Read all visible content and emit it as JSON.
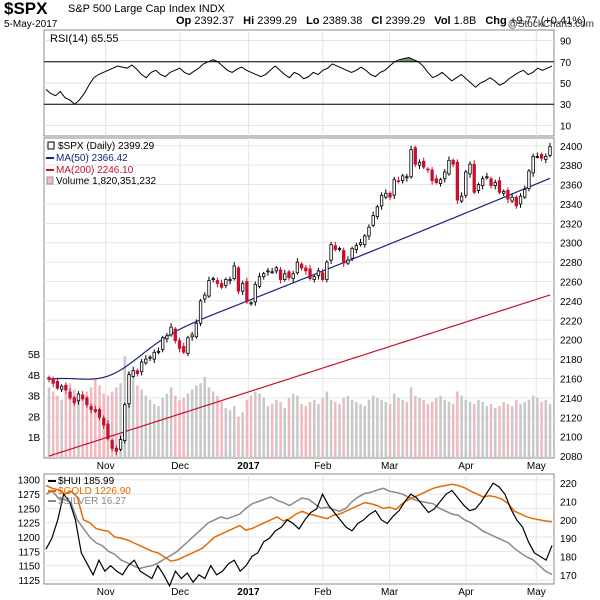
{
  "header": {
    "symbol": "$SPX",
    "name": "S&P 500 Large Cap Index",
    "exchange": "INDX",
    "date": "5-May-2017",
    "brand": "@StockCharts.com",
    "open_label": "Op",
    "open": "2392.37",
    "high_label": "Hi",
    "high": "2399.29",
    "low_label": "Lo",
    "low": "2389.38",
    "close_label": "Cl",
    "close": "2399.29",
    "vol_label": "Vol",
    "vol": "1.8B",
    "chg_label": "Chg",
    "chg": "+9.77 (+0.41%)"
  },
  "colors": {
    "up": "#000000",
    "down": "#c8102e",
    "ma50": "#1a237e",
    "ma200": "#c8102e",
    "rsi_line": "#000000",
    "rsi_fill": "#2e7d32",
    "vol_bar": "#f2b8c0",
    "vol_bar_up": "#c8c8c8",
    "hui": "#000000",
    "gold": "#e66a00",
    "silver": "#8a8a8a"
  },
  "chart_data": [
    {
      "type": "line",
      "panel": "rsi",
      "legend": "RSI(14) 65.55",
      "series": [
        {
          "name": "RSI(14)",
          "values": [
            44,
            40,
            38,
            42,
            36,
            34,
            30,
            34,
            40,
            48,
            55,
            58,
            60,
            62,
            64,
            66,
            65,
            64,
            67,
            63,
            58,
            55,
            60,
            62,
            58,
            56,
            60,
            62,
            64,
            60,
            58,
            61,
            64,
            68,
            70,
            72,
            70,
            66,
            62,
            60,
            63,
            65,
            62,
            60,
            58,
            56,
            58,
            62,
            66,
            62,
            58,
            55,
            60,
            58,
            54,
            56,
            60,
            58,
            62,
            64,
            68,
            66,
            64,
            62,
            60,
            62,
            65,
            62,
            58,
            56,
            60,
            62,
            66,
            70,
            72,
            73,
            74,
            72,
            70,
            66,
            60,
            55,
            57,
            60,
            56,
            52,
            55,
            58,
            54,
            50,
            46,
            50,
            52,
            55,
            52,
            48,
            50,
            54,
            57,
            60,
            62,
            58,
            60,
            64,
            62,
            64,
            66
          ]
        }
      ],
      "y_ticks": [
        10,
        30,
        50,
        70,
        90
      ],
      "ylim": [
        0,
        100
      ],
      "ref_lines": [
        30,
        70
      ]
    },
    {
      "type": "candlestick",
      "panel": "price",
      "title": "$SPX (Daily) 2399.29",
      "legend": [
        "$SPX (Daily) 2399.29",
        "MA(50) 2366.42",
        "MA(200) 2246.10",
        "Volume 1,820,351,232"
      ],
      "closes": [
        2159,
        2155,
        2150,
        2152,
        2148,
        2140,
        2135,
        2144,
        2139,
        2133,
        2128,
        2126,
        2120,
        2112,
        2098,
        2088,
        2085,
        2097,
        2133,
        2164,
        2168,
        2165,
        2177,
        2180,
        2182,
        2187,
        2188,
        2202,
        2204,
        2213,
        2199,
        2191,
        2187,
        2202,
        2205,
        2217,
        2240,
        2246,
        2261,
        2263,
        2258,
        2254,
        2262,
        2262,
        2276,
        2250,
        2258,
        2239,
        2238,
        2257,
        2265,
        2268,
        2271,
        2270,
        2274,
        2262,
        2268,
        2264,
        2268,
        2280,
        2274,
        2271,
        2263,
        2265,
        2271,
        2262,
        2280,
        2298,
        2293,
        2294,
        2279,
        2282,
        2294,
        2297,
        2300,
        2307,
        2316,
        2328,
        2337,
        2349,
        2351,
        2347,
        2365,
        2363,
        2369,
        2368,
        2396,
        2381,
        2383,
        2378,
        2375,
        2364,
        2362,
        2365,
        2373,
        2385,
        2381,
        2344,
        2348,
        2373,
        2381,
        2352,
        2360,
        2366,
        2368,
        2359,
        2362,
        2352,
        2353,
        2345,
        2347,
        2338,
        2348,
        2355,
        2374,
        2389,
        2389,
        2387,
        2389,
        2399
      ],
      "volume_B": [
        3.4,
        3.2,
        3.0,
        2.8,
        3.1,
        3.6,
        3.3,
        3.0,
        2.9,
        3.2,
        3.4,
        3.8,
        3.5,
        3.1,
        3.0,
        3.2,
        3.4,
        3.6,
        4.9,
        4.2,
        3.8,
        3.5,
        3.3,
        3.0,
        2.8,
        2.6,
        2.5,
        2.9,
        3.1,
        3.4,
        3.0,
        2.8,
        2.9,
        3.1,
        3.3,
        3.5,
        3.6,
        3.9,
        3.4,
        3.2,
        3.0,
        2.7,
        2.4,
        2.3,
        2.5,
        2.0,
        2.2,
        2.8,
        3.0,
        3.2,
        3.1,
        2.9,
        2.5,
        2.6,
        2.8,
        2.7,
        2.4,
        2.9,
        3.1,
        3.0,
        2.6,
        2.5,
        2.7,
        2.8,
        2.6,
        2.9,
        3.2,
        2.8,
        2.7,
        2.6,
        2.9,
        3.0,
        2.8,
        2.7,
        2.6,
        2.5,
        2.8,
        3.0,
        2.9,
        2.8,
        2.7,
        2.6,
        3.1,
        2.9,
        2.8,
        2.7,
        3.4,
        3.0,
        2.9,
        2.8,
        2.6,
        2.7,
        2.9,
        3.0,
        2.8,
        2.7,
        2.6,
        3.2,
        3.0,
        2.8,
        2.7,
        2.6,
        2.8,
        2.7,
        2.5,
        2.6,
        2.4,
        2.5,
        2.7,
        2.6,
        2.5,
        2.8,
        2.6,
        2.7,
        2.8,
        3.0,
        2.9,
        2.7,
        2.8,
        2.6
      ],
      "ma50_start_end": [
        2163,
        2366.42
      ],
      "ma200_start_end": [
        2080,
        2246.1
      ],
      "y_ticks": [
        2080,
        2100,
        2120,
        2140,
        2160,
        2180,
        2200,
        2220,
        2240,
        2260,
        2280,
        2300,
        2320,
        2340,
        2360,
        2380,
        2400
      ],
      "volume_ticks": [
        "1B",
        "2B",
        "3B",
        "4B",
        "5B"
      ],
      "ylim": [
        2078,
        2408
      ],
      "x_ticks": [
        "Nov",
        "Dec",
        "2017",
        "Feb",
        "Mar",
        "Apr",
        "May"
      ]
    },
    {
      "type": "line",
      "panel": "comparison",
      "series": [
        {
          "name": "$HUI 185.99",
          "values": [
            184,
            190,
            200,
            214,
            210,
            200,
            182,
            176,
            170,
            178,
            172,
            175,
            172,
            170,
            175,
            178,
            172,
            170,
            168,
            175,
            170,
            164,
            172,
            168,
            171,
            166,
            170,
            168,
            175,
            170,
            172,
            176,
            178,
            172,
            175,
            180,
            182,
            188,
            190,
            194,
            196,
            200,
            198,
            195,
            200,
            204,
            206,
            214,
            208,
            204,
            200,
            196,
            194,
            198,
            200,
            203,
            205,
            200,
            198,
            202,
            205,
            210,
            214,
            212,
            208,
            204,
            206,
            210,
            214,
            216,
            212,
            208,
            205,
            206,
            210,
            215,
            220,
            218,
            214,
            206,
            200,
            196,
            188,
            182,
            180,
            178,
            186
          ]
        },
        {
          "name": "$GOLD 1226.90",
          "values": [
            1290,
            1285,
            1282,
            1275,
            1280,
            1270,
            1230,
            1225,
            1215,
            1212,
            1210,
            1200,
            1198,
            1195,
            1190,
            1185,
            1180,
            1175,
            1172,
            1165,
            1158,
            1160,
            1165,
            1170,
            1175,
            1180,
            1190,
            1200,
            1205,
            1210,
            1215,
            1220,
            1212,
            1215,
            1220,
            1225,
            1230,
            1235,
            1228,
            1232,
            1240,
            1245,
            1240,
            1238,
            1235,
            1232,
            1238,
            1240,
            1245,
            1250,
            1255,
            1260,
            1258,
            1255,
            1250,
            1252,
            1248,
            1258,
            1265,
            1270,
            1275,
            1280,
            1285,
            1288,
            1290,
            1292,
            1290,
            1286,
            1280,
            1275,
            1270,
            1272,
            1270,
            1266,
            1258,
            1245,
            1240,
            1235,
            1232,
            1230,
            1228,
            1226.9
          ]
        },
        {
          "name": "$SILVER 16.27",
          "values": [
            1275,
            1280,
            1268,
            1265,
            1260,
            1230,
            1215,
            1200,
            1190,
            1185,
            1175,
            1170,
            1160,
            1155,
            1150,
            1145,
            1148,
            1150,
            1155,
            1162,
            1168,
            1175,
            1185,
            1195,
            1205,
            1215,
            1225,
            1230,
            1235,
            1232,
            1236,
            1240,
            1250,
            1258,
            1262,
            1266,
            1270,
            1264,
            1260,
            1255,
            1262,
            1268,
            1266,
            1258,
            1250,
            1252,
            1248,
            1245,
            1250,
            1262,
            1270,
            1276,
            1278,
            1282,
            1285,
            1280,
            1278,
            1275,
            1270,
            1265,
            1262,
            1260,
            1258,
            1250,
            1245,
            1240,
            1238,
            1230,
            1225,
            1218,
            1210,
            1205,
            1200,
            1195,
            1190,
            1180,
            1172,
            1165,
            1160,
            1150,
            1140,
            1135
          ]
        }
      ],
      "y_ticks_left": [
        1125,
        1150,
        1175,
        1200,
        1225,
        1250,
        1275,
        1300
      ],
      "y_ticks_right": [
        170,
        180,
        190,
        200,
        210,
        220
      ],
      "ylim_left": [
        1118,
        1310
      ],
      "ylim_right": [
        165,
        225
      ],
      "x_ticks": [
        "Nov",
        "Dec",
        "2017",
        "Feb",
        "Mar",
        "Apr",
        "May"
      ]
    }
  ]
}
